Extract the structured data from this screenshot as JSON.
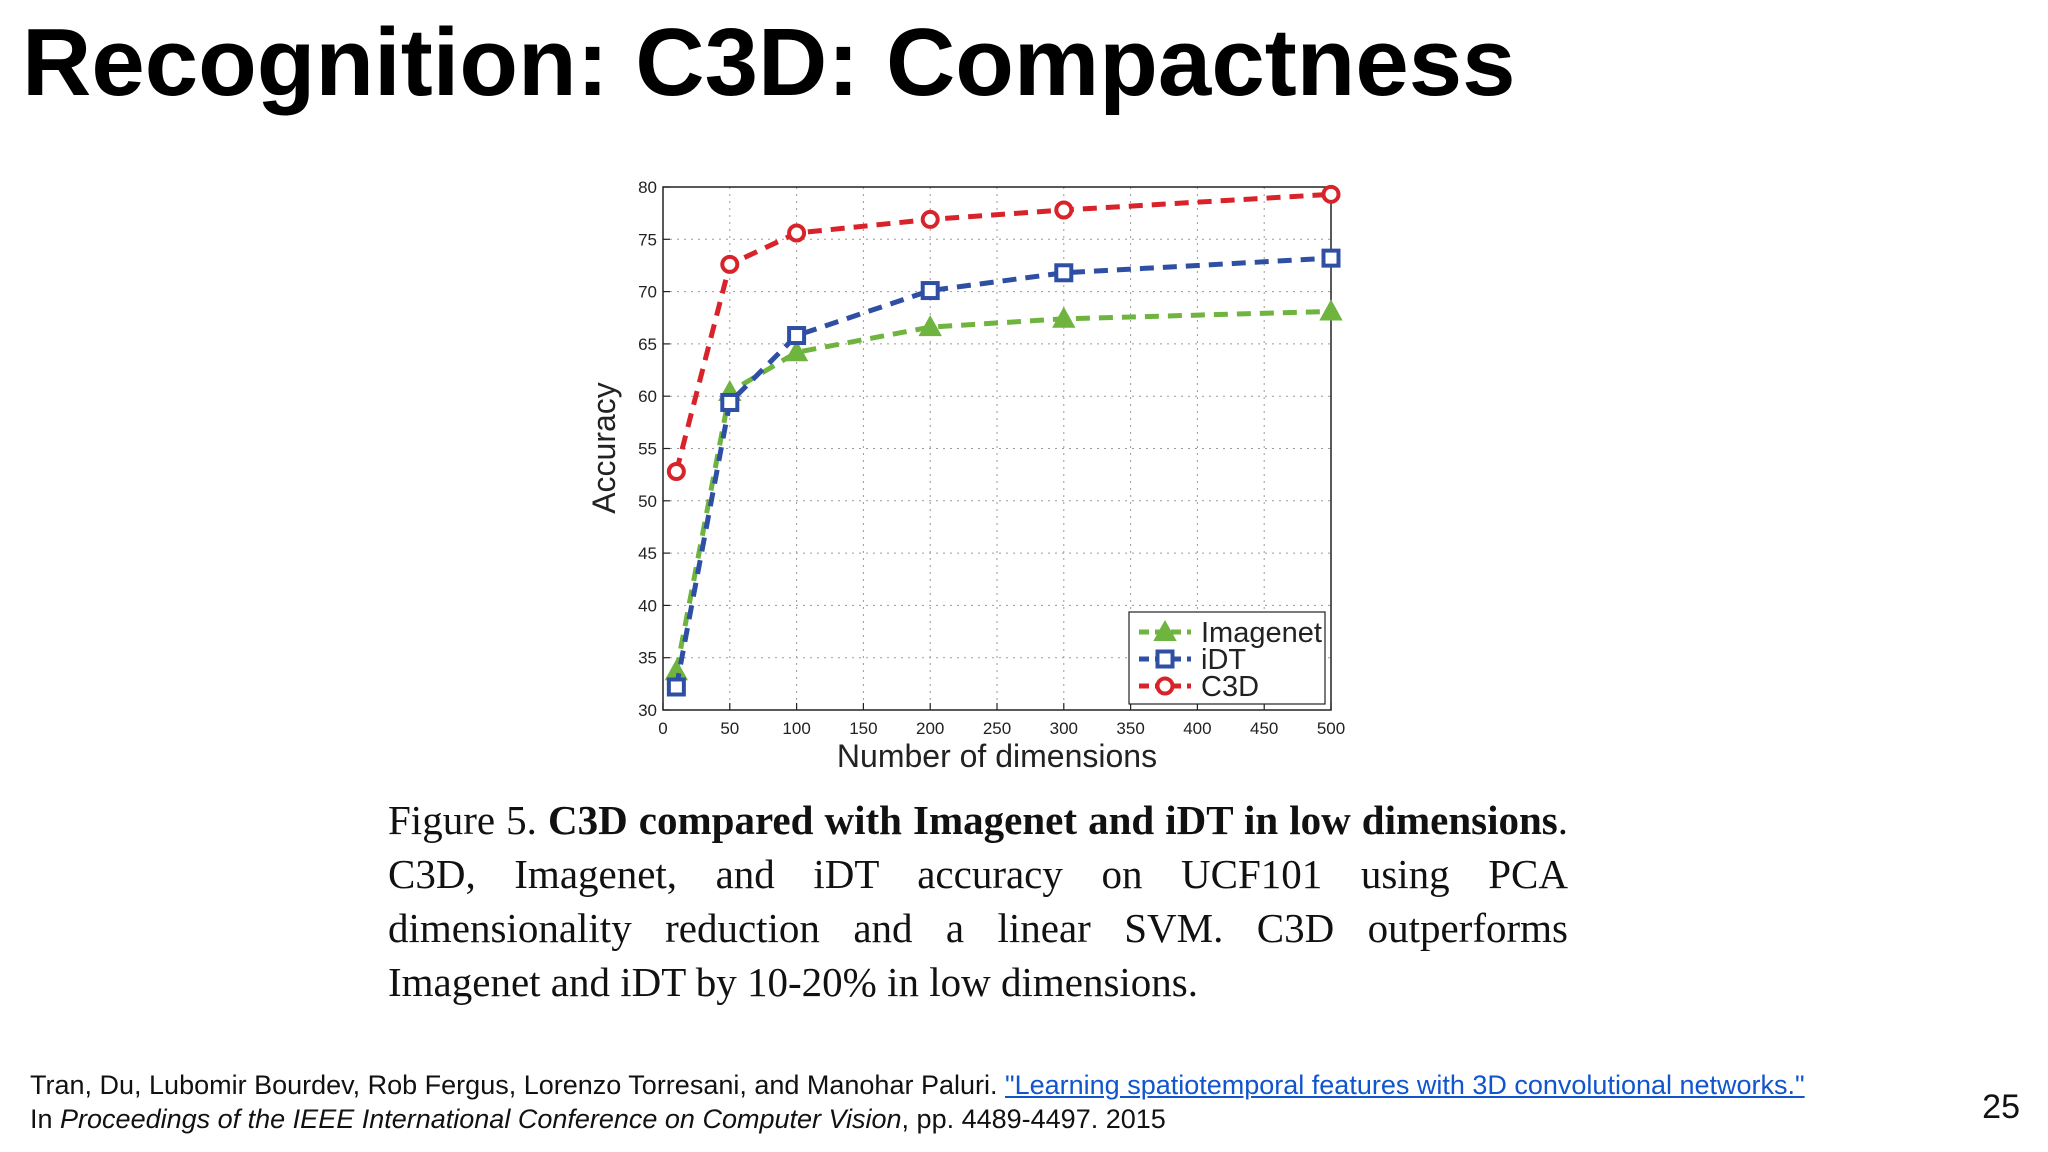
{
  "slide": {
    "title": "Recognition: C3D: Compactness",
    "page_number": "25"
  },
  "figure": {
    "caption_label": "Figure 5.",
    "caption_bold": "C3D compared with Imagenet and iDT in low dimensions",
    "caption_rest": ". C3D, Imagenet, and iDT accuracy on UCF101 using PCA dimensionality reduction and a linear SVM. C3D outperforms Imagenet and iDT by 10-20% in low dimensions."
  },
  "citation": {
    "authors": "Tran, Du, Lubomir Bourdev, Rob Fergus, Lorenzo Torresani, and Manohar Paluri.",
    "link_text": "\"Learning spatiotemporal features with 3D convolutional networks.\"",
    "prefix": "In ",
    "venue": "Proceedings of the IEEE International Conference on Computer Vision",
    "pages": ", pp. 4489-4497. 2015"
  },
  "chart_data": {
    "type": "line",
    "xlabel": "Number of dimensions",
    "ylabel": "Accuracy",
    "xlim": [
      0,
      500
    ],
    "ylim": [
      30,
      80
    ],
    "xticks": [
      0,
      50,
      100,
      150,
      200,
      250,
      300,
      350,
      400,
      450,
      500
    ],
    "yticks": [
      30,
      35,
      40,
      45,
      50,
      55,
      60,
      65,
      70,
      75,
      80
    ],
    "grid": true,
    "legend_position": "bottom-right",
    "x": [
      10,
      50,
      100,
      200,
      300,
      500
    ],
    "series": [
      {
        "name": "Imagenet",
        "values": [
          33.7,
          60.4,
          64.2,
          66.6,
          67.4,
          68.1
        ],
        "color": "#6fb43f",
        "marker": "triangle"
      },
      {
        "name": "iDT",
        "values": [
          32.2,
          59.4,
          65.8,
          70.1,
          71.8,
          73.2
        ],
        "color": "#2e4fa3",
        "marker": "square"
      },
      {
        "name": "C3D",
        "values": [
          52.8,
          72.6,
          75.6,
          76.9,
          77.8,
          79.3
        ],
        "color": "#d8232a",
        "marker": "circle"
      }
    ]
  }
}
